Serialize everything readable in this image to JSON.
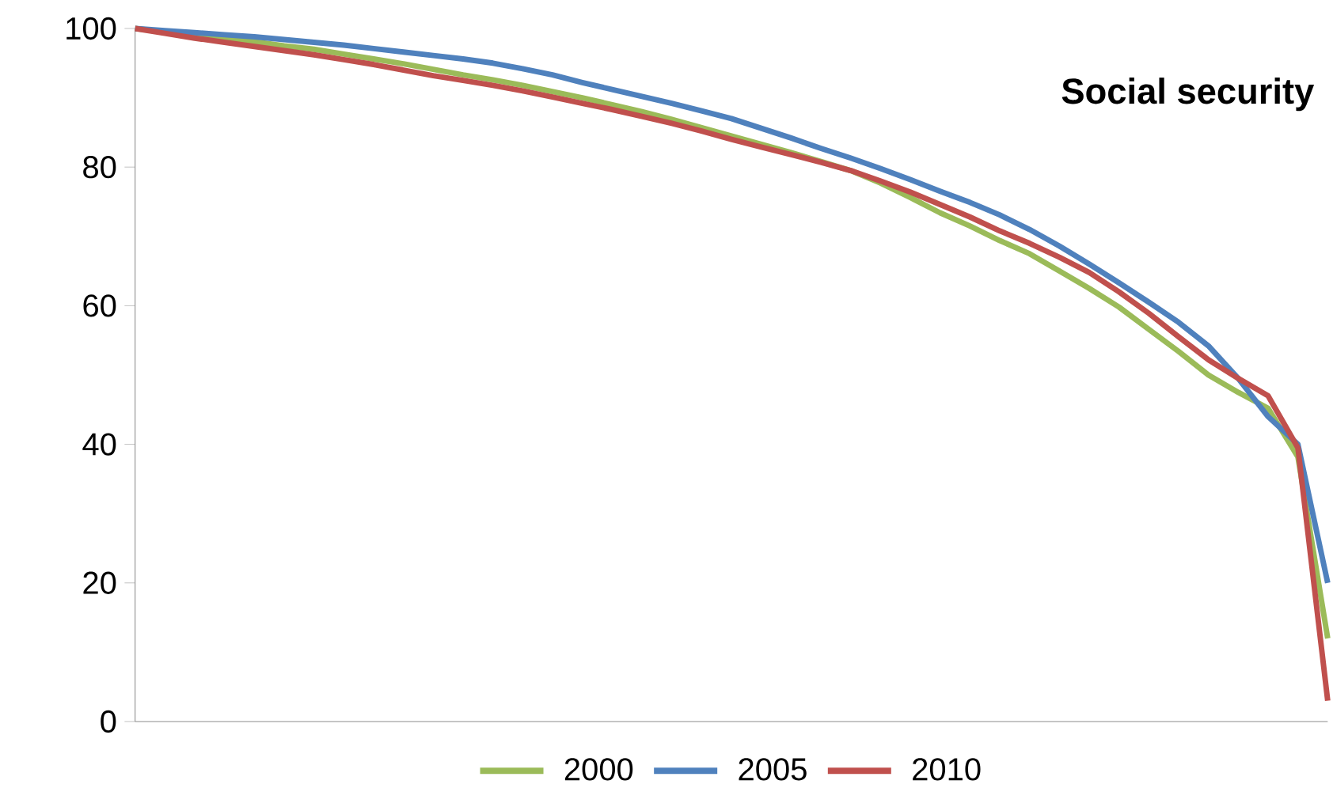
{
  "chart_data": {
    "type": "line",
    "title": "Social security",
    "categories": [
      null,
      null,
      null,
      null,
      null,
      null,
      null,
      null,
      null,
      null,
      null,
      null,
      null,
      null,
      null,
      null,
      null,
      null,
      null,
      null,
      null,
      null,
      null,
      null,
      null,
      null,
      null,
      null,
      null,
      null,
      null,
      null,
      null,
      null,
      null,
      null,
      null,
      null,
      null,
      null,
      null
    ],
    "series": [
      {
        "name": "2000",
        "color": "#9bbb59",
        "values": [
          100,
          99.5,
          99.0,
          98.6,
          98.1,
          97.5,
          97.0,
          96.3,
          95.6,
          94.9,
          94.1,
          93.3,
          92.6,
          91.8,
          90.9,
          90.0,
          89.0,
          88.0,
          86.9,
          85.7,
          84.5,
          83.3,
          82.1,
          80.8,
          79.5,
          77.7,
          75.6,
          73.4,
          71.5,
          69.4,
          67.5,
          65.0,
          62.5,
          59.8,
          56.6,
          53.4,
          50.0,
          47.5,
          45.2,
          38.2,
          12
        ]
      },
      {
        "name": "2005",
        "color": "#4f81bd",
        "values": [
          100,
          99.7,
          99.4,
          99.1,
          98.8,
          98.4,
          98.0,
          97.6,
          97.1,
          96.6,
          96.1,
          95.6,
          95.0,
          94.2,
          93.3,
          92.2,
          91.2,
          90.2,
          89.2,
          88.1,
          87.0,
          85.6,
          84.2,
          82.7,
          81.3,
          79.8,
          78.2,
          76.5,
          74.9,
          73.1,
          71.0,
          68.6,
          66.0,
          63.3,
          60.5,
          57.6,
          54.2,
          49.5,
          44.0,
          40.0,
          20
        ]
      },
      {
        "name": "2010",
        "color": "#c0504d",
        "values": [
          100,
          99.3,
          98.6,
          98.0,
          97.4,
          96.8,
          96.2,
          95.5,
          94.8,
          94.0,
          93.2,
          92.5,
          91.8,
          91.0,
          90.1,
          89.2,
          88.3,
          87.3,
          86.3,
          85.2,
          84.0,
          82.9,
          81.8,
          80.7,
          79.5,
          78.0,
          76.4,
          74.6,
          72.8,
          70.8,
          69.0,
          67.0,
          64.8,
          62.0,
          58.9,
          55.5,
          52.2,
          49.5,
          47.0,
          39.5,
          3
        ]
      }
    ],
    "ylim": [
      0,
      100
    ],
    "yticks": [
      0,
      20,
      40,
      60,
      80,
      100
    ],
    "grid": false,
    "legend": "bottom",
    "marker": "none",
    "line_style": "solid"
  }
}
